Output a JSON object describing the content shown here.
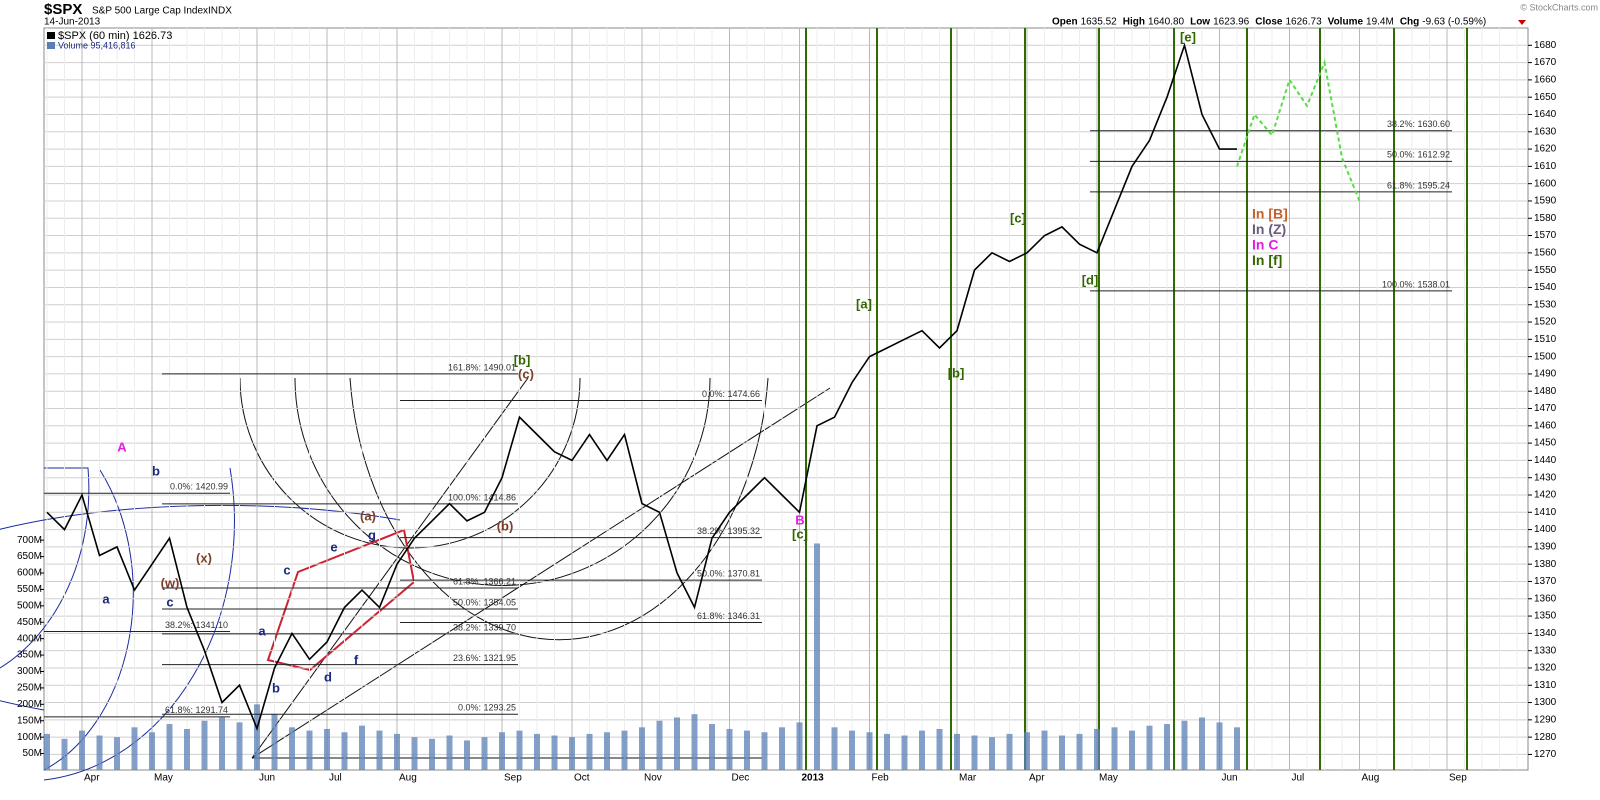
{
  "chart_data": {
    "type": "line",
    "title": "$SPX",
    "subtitle": "S&P 500 Large Cap Index",
    "exchange": "INDX",
    "date": "14-Jun-2013",
    "stats": [
      {
        "label": "Open",
        "value": "1635.52"
      },
      {
        "label": "High",
        "value": "1640.80"
      },
      {
        "label": "Low",
        "value": "1623.96"
      },
      {
        "label": "Close",
        "value": "1626.73"
      },
      {
        "label": "Volume",
        "value": "19.4M"
      },
      {
        "label": "Chg",
        "value": "-9.63 (-0.59%)"
      }
    ],
    "copyright": "© StockCharts.com",
    "categories": [
      null,
      null,
      "Apr",
      null,
      null,
      null,
      "May",
      null,
      null,
      null,
      null,
      null,
      "Jun",
      null,
      null,
      null,
      "Jul",
      null,
      null,
      null,
      "Aug",
      null,
      null,
      null,
      null,
      null,
      "Sep",
      null,
      null,
      null,
      "Oct",
      null,
      null,
      null,
      "Nov",
      null,
      null,
      null,
      null,
      "Dec",
      null,
      null,
      null,
      "2013",
      null,
      null,
      null,
      "Feb",
      null,
      null,
      null,
      null,
      "Mar",
      null,
      null,
      null,
      "Apr",
      null,
      null,
      null,
      "May",
      null,
      null,
      null,
      null,
      null,
      null,
      "Jun",
      null,
      null,
      null,
      "Jul",
      null,
      null,
      null,
      "Aug",
      null,
      null,
      null,
      null,
      "Sep",
      null,
      null,
      null,
      null
    ],
    "series": [
      {
        "name": "$SPX (60 min) 1626.73",
        "color": "#000000",
        "values": [
          1410,
          1400,
          1420,
          1385,
          1390,
          1365,
          1380,
          1395,
          1355,
          1330,
          1300,
          1310,
          1285,
          1320,
          1340,
          1325,
          1335,
          1355,
          1365,
          1355,
          1380,
          1395,
          1405,
          1415,
          1405,
          1410,
          1430,
          1465,
          1455,
          1445,
          1440,
          1455,
          1440,
          1455,
          1415,
          1410,
          1375,
          1355,
          1395,
          1410,
          1420,
          1430,
          1420,
          1410,
          1460,
          1465,
          1485,
          1500,
          1505,
          1510,
          1515,
          1505,
          1515,
          1550,
          1560,
          1555,
          1560,
          1570,
          1575,
          1565,
          1560,
          1585,
          1610,
          1625,
          1650,
          1680,
          1640,
          1620,
          1620,
          null,
          null,
          null,
          null,
          null,
          null,
          null,
          null,
          null,
          null,
          null,
          null,
          null,
          null,
          null,
          null
        ]
      },
      {
        "name": "Volume 95,416,816",
        "color": "#5b7fb5",
        "axis": "y2",
        "values": [
          110,
          95,
          120,
          105,
          100,
          130,
          115,
          140,
          125,
          150,
          160,
          145,
          200,
          170,
          130,
          120,
          125,
          115,
          135,
          120,
          110,
          100,
          95,
          105,
          90,
          100,
          115,
          120,
          110,
          105,
          100,
          110,
          115,
          120,
          130,
          150,
          160,
          170,
          140,
          125,
          120,
          115,
          130,
          145,
          690,
          130,
          120,
          115,
          110,
          105,
          120,
          125,
          110,
          105,
          100,
          110,
          115,
          120,
          105,
          110,
          125,
          130,
          120,
          135,
          140,
          150,
          160,
          145,
          130,
          null,
          null,
          null,
          null,
          null,
          null,
          null,
          null,
          null,
          null,
          null,
          null,
          null,
          null,
          null,
          null
        ]
      }
    ],
    "projection": {
      "color": "#55dd44",
      "values": [
        null,
        null,
        null,
        null,
        null,
        null,
        null,
        null,
        null,
        null,
        null,
        null,
        null,
        null,
        null,
        null,
        null,
        null,
        null,
        null,
        null,
        null,
        null,
        null,
        null,
        null,
        null,
        null,
        null,
        null,
        null,
        null,
        null,
        null,
        null,
        null,
        null,
        null,
        null,
        null,
        null,
        null,
        null,
        null,
        null,
        null,
        null,
        null,
        null,
        null,
        null,
        null,
        null,
        null,
        null,
        null,
        null,
        null,
        null,
        null,
        null,
        null,
        null,
        null,
        null,
        null,
        null,
        null,
        1610,
        1640,
        1628,
        1660,
        1645,
        1670,
        1615,
        1590,
        null,
        null,
        null,
        null,
        null,
        null,
        null,
        null,
        null
      ]
    },
    "ylim": [
      1261,
      1690
    ],
    "yticks": [
      1270,
      1280,
      1290,
      1300,
      1310,
      1320,
      1330,
      1340,
      1350,
      1360,
      1370,
      1380,
      1390,
      1400,
      1410,
      1420,
      1430,
      1440,
      1450,
      1460,
      1470,
      1480,
      1490,
      1500,
      1510,
      1520,
      1530,
      1540,
      1550,
      1560,
      1570,
      1580,
      1590,
      1600,
      1610,
      1620,
      1630,
      1640,
      1650,
      1660,
      1670,
      1680
    ],
    "y2lim": [
      0,
      2260
    ],
    "y2ticks": [
      {
        "value": 50,
        "label": "50M"
      },
      {
        "value": 100,
        "label": "100M"
      },
      {
        "value": 150,
        "label": "150M"
      },
      {
        "value": 200,
        "label": "200M"
      },
      {
        "value": 250,
        "label": "250M"
      },
      {
        "value": 300,
        "label": "300M"
      },
      {
        "value": 350,
        "label": "350M"
      },
      {
        "value": 400,
        "label": "400M"
      },
      {
        "value": 450,
        "label": "450M"
      },
      {
        "value": 500,
        "label": "500M"
      },
      {
        "value": 550,
        "label": "550M"
      },
      {
        "value": 600,
        "label": "600M"
      },
      {
        "value": 650,
        "label": "650M"
      },
      {
        "value": 700,
        "label": "700M"
      }
    ],
    "grid": true,
    "fib_sets": [
      [
        {
          "value": 1630.6,
          "label": "38.2%: 1630.60"
        },
        {
          "value": 1612.92,
          "label": "50.0%: 1612.92"
        },
        {
          "value": 1595.24,
          "label": "61.8%: 1595.24"
        },
        {
          "value": 1538.01,
          "label": "100.0%: 1538.01"
        }
      ],
      [
        {
          "value": 1474.66,
          "label": "0.0%: 1474.66"
        },
        {
          "value": 1395.32,
          "label": "38.2%: 1395.32"
        },
        {
          "value": 1370.81,
          "label": "50.0%: 1370.81"
        },
        {
          "value": 1346.31,
          "label": "61.8%: 1346.31"
        }
      ],
      [
        {
          "value": 1490.01,
          "label": "161.8%: 1490.01"
        },
        {
          "value": 1414.86,
          "label": "100.0%: 1414.86"
        },
        {
          "value": 1366.21,
          "label": "61.8%: 1366.21"
        },
        {
          "value": 1354.05,
          "label": "50.0%: 1354.05"
        },
        {
          "value": 1339.7,
          "label": "38.2%: 1339.70"
        },
        {
          "value": 1321.95,
          "label": "23.6%: 1321.95"
        },
        {
          "value": 1293.25,
          "label": "0.0%: 1293.25"
        }
      ],
      [
        {
          "value": 1420.99,
          "label": "0.0%: 1420.99"
        },
        {
          "value": 1341.1,
          "label": "38.2%: 1341.10"
        },
        {
          "value": 1291.74,
          "label": "61.8%: 1291.74"
        }
      ]
    ],
    "wave_labels": [
      {
        "text": "[e]",
        "color": "#336600"
      },
      {
        "text": "[d]",
        "color": "#336600"
      },
      {
        "text": "[c]",
        "color": "#336600"
      },
      {
        "text": "[b]",
        "color": "#336600"
      },
      {
        "text": "[a]",
        "color": "#336600"
      },
      {
        "text": "[b]",
        "color": "#336600"
      },
      {
        "text": "(c)",
        "color": "#7b3f2a"
      },
      {
        "text": "B",
        "color": "#e020e0"
      },
      {
        "text": "[c]",
        "color": "#336600"
      },
      {
        "text": "(b)",
        "color": "#7b3f2a"
      },
      {
        "text": "(a)",
        "color": "#7b3f2a"
      },
      {
        "text": "(x)",
        "color": "#7b3f2a"
      },
      {
        "text": "(w)",
        "color": "#7b3f2a"
      },
      {
        "text": "A",
        "color": "#e020e0"
      },
      {
        "text": "b",
        "color": "#1a2a7e"
      },
      {
        "text": "a",
        "color": "#1a2a7e"
      },
      {
        "text": "c",
        "color": "#1a2a7e"
      },
      {
        "text": "a",
        "color": "#1a2a7e"
      },
      {
        "text": "b",
        "color": "#1a2a7e"
      },
      {
        "text": "c",
        "color": "#1a2a7e"
      },
      {
        "text": "e",
        "color": "#1a2a7e"
      },
      {
        "text": "g",
        "color": "#1a2a7e"
      },
      {
        "text": "d",
        "color": "#1a2a7e"
      },
      {
        "text": "f",
        "color": "#1a2a7e"
      }
    ],
    "notes": [
      {
        "text": "In [B]",
        "color": "#c8602a"
      },
      {
        "text": "In (Z)",
        "color": "#6b5b7b"
      },
      {
        "text": "In C",
        "color": "#e020e0"
      },
      {
        "text": "In [f]",
        "color": "#336600"
      }
    ]
  }
}
